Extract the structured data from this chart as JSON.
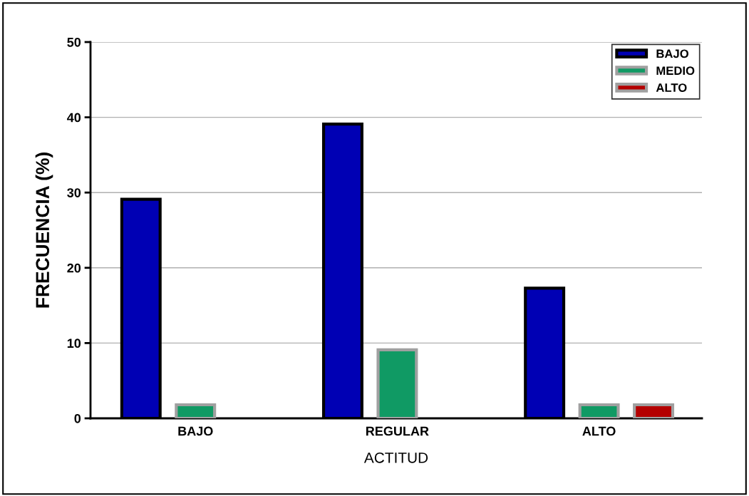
{
  "chart_data": {
    "type": "bar",
    "xlabel": "ACTITUD",
    "ylabel": "FRECUENCIA (%)",
    "categories": [
      "BAJO",
      "REGULAR",
      "ALTO"
    ],
    "series": [
      {
        "name": "BAJO",
        "color": "#0000b4",
        "values": [
          29.1,
          39.1,
          17.3
        ]
      },
      {
        "name": "MEDIO",
        "color": "#109a64",
        "values": [
          1.8,
          9.1,
          1.8
        ]
      },
      {
        "name": "ALTO",
        "color": "#b40000",
        "values": [
          null,
          null,
          1.8
        ]
      }
    ],
    "ylim": [
      0,
      50
    ],
    "yticks": [
      0,
      10,
      20,
      30,
      40,
      50
    ],
    "grid": "y",
    "legend": "top right"
  }
}
